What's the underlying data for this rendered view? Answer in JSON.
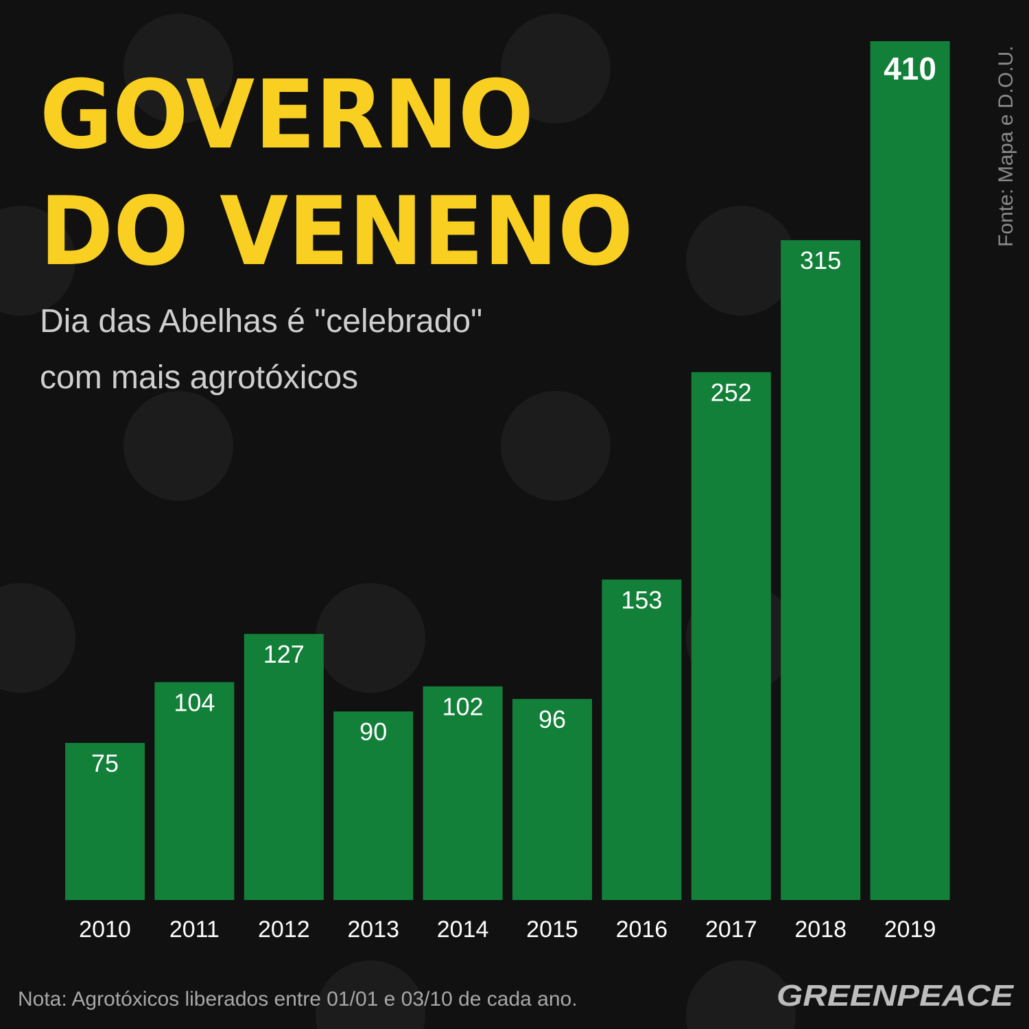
{
  "chart_data": {
    "type": "bar",
    "title": [
      "GOVERNO",
      "DO VENENO"
    ],
    "subtitle": [
      "Dia das Abelhas é \"celebrado\"",
      "com mais agrotóxicos"
    ],
    "source": "Fonte: Mapa e D.O.U.",
    "note": "Nota: Agrotóxicos liberados entre 01/01 e 03/10 de cada ano.",
    "logo": "GREENPEACE",
    "categories": [
      "2010",
      "2011",
      "2012",
      "2013",
      "2014",
      "2015",
      "2016",
      "2017",
      "2018",
      "2019"
    ],
    "values": [
      75,
      104,
      127,
      90,
      102,
      96,
      153,
      252,
      315,
      410
    ],
    "color": "#13803a"
  }
}
